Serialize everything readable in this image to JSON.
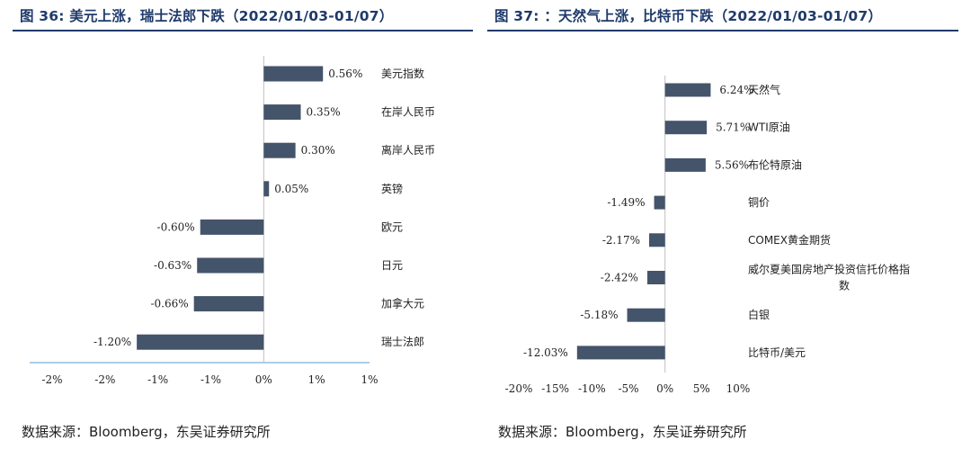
{
  "left": {
    "title": "图 36: 美元上涨，瑞士法郎下跌（2022/01/03-01/07）",
    "source": "数据来源：Bloomberg，东吴证券研究所",
    "colors": {
      "bar": "#44546a",
      "title": "#1f3a6b",
      "axis_line": "#5b9bd5"
    },
    "chart_data": {
      "type": "bar",
      "orientation": "horizontal",
      "categories": [
        "美元指数",
        "在岸人民币",
        "离岸人民币",
        "英镑",
        "欧元",
        "日元",
        "加拿大元",
        "瑞士法郎"
      ],
      "values": [
        0.56,
        0.35,
        0.3,
        0.05,
        -0.6,
        -0.63,
        -0.66,
        -1.2
      ],
      "value_labels": [
        "0.56%",
        "0.35%",
        "0.30%",
        "0.05%",
        "-0.60%",
        "-0.63%",
        "-0.66%",
        "-1.20%"
      ],
      "xlim": [
        -2,
        1
      ],
      "tick_labels": [
        "-2%",
        "-2%",
        "-1%",
        "-1%",
        "0%",
        "1%",
        "1%"
      ],
      "grid": false,
      "legend": "none"
    }
  },
  "right": {
    "title": "图 37: ：天然气上涨，比特币下跌（2022/01/03-01/07）",
    "source": "数据来源：Bloomberg，东吴证券研究所",
    "colors": {
      "bar": "#44546a",
      "title": "#1f3a6b"
    },
    "chart_data": {
      "type": "bar",
      "orientation": "horizontal",
      "categories": [
        "天然气",
        "WTI原油",
        "布伦特原油",
        "铜价",
        "COMEX黄金期货",
        "威尔夏美国房地产投资信托价格指数",
        "白银",
        "比特币/美元"
      ],
      "category_lines": [
        [
          "天然气"
        ],
        [
          "WTI原油"
        ],
        [
          "布伦特原油"
        ],
        [
          "铜价"
        ],
        [
          "COMEX黄金期货"
        ],
        [
          "威尔夏美国房地产投资信托价格指",
          "数"
        ],
        [
          "白银"
        ],
        [
          "比特币/美元"
        ]
      ],
      "values": [
        6.24,
        5.71,
        5.56,
        -1.49,
        -2.17,
        -2.42,
        -5.18,
        -12.03
      ],
      "value_labels": [
        "6.24%",
        "5.71%",
        "5.56%",
        "-1.49%",
        "-2.17%",
        "-2.42%",
        "-5.18%",
        "-12.03%"
      ],
      "xlim": [
        -20,
        10
      ],
      "tick_labels": [
        "-20%",
        "-15%",
        "-10%",
        "-5%",
        "0%",
        "5%",
        "10%"
      ],
      "grid": false,
      "legend": "none"
    }
  }
}
